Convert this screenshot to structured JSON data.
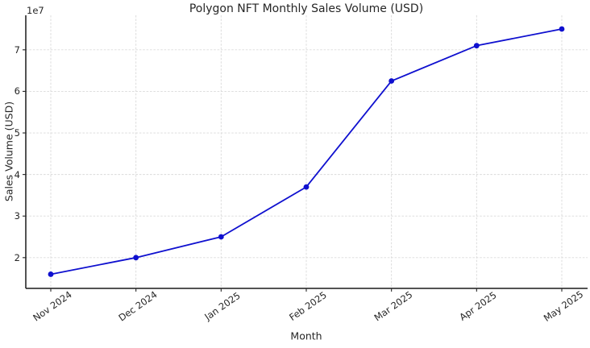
{
  "chart_data": {
    "type": "line",
    "title": "Polygon NFT Monthly Sales Volume (USD)",
    "xlabel": "Month",
    "ylabel": "Sales Volume (USD)",
    "y_axis_offset_text": "1e7",
    "categories": [
      "Nov 2024",
      "Dec 2024",
      "Jan 2025",
      "Feb 2025",
      "Mar 2025",
      "Apr 2025",
      "May 2025"
    ],
    "values": [
      16000000,
      20000000,
      25000000,
      37000000,
      62500000,
      71000000,
      75000000
    ],
    "yticks": [
      20000000,
      30000000,
      40000000,
      50000000,
      60000000,
      70000000
    ],
    "ytick_labels": [
      "2",
      "3",
      "4",
      "5",
      "6",
      "7"
    ],
    "ylim": [
      12600000,
      78300000
    ],
    "x_tick_rotation_deg": 35,
    "grid": true,
    "grid_style": "dashed",
    "legend": "none",
    "marker": "circle",
    "colors": {
      "line": "#0f10cf",
      "marker": "#0f10cf",
      "grid": "#d9d9d9",
      "spine": "#1a1a1a",
      "text": "#262626",
      "background": "#ffffff"
    }
  }
}
